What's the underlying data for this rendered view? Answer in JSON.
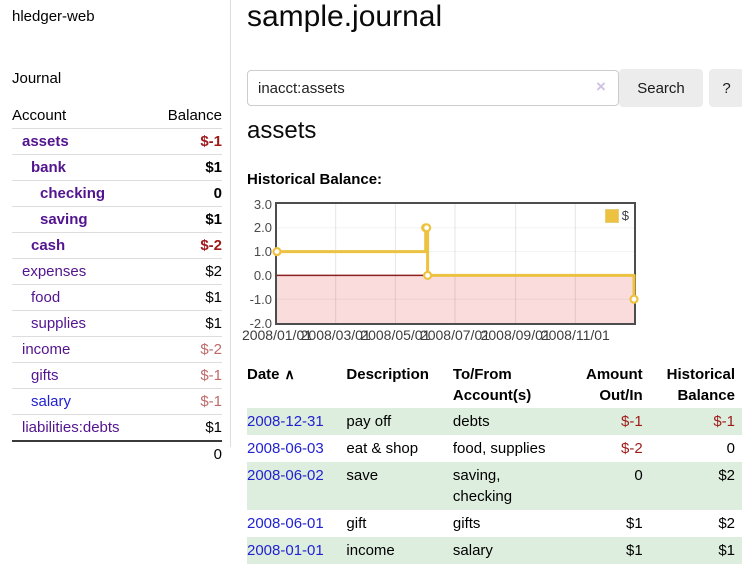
{
  "colors": {
    "link_purple": "#53148f",
    "link_blue": "#2222d2",
    "neg_strong": "#9e1a1a",
    "neg_soft": "#c06a6a",
    "row_stripe_green": "#deeede",
    "chart_line_gold": "#edc240",
    "chart_negative_fill": "#fbdcdc",
    "chart_zero_line": "#8b2020",
    "text_black": "#000000"
  },
  "sidebar": {
    "brand": "hledger-web",
    "journal_link": "Journal",
    "accounts_table": {
      "headers": [
        "Account",
        "Balance"
      ],
      "rows": [
        {
          "name": "assets",
          "balance": "$-1",
          "level": 1,
          "bold": true,
          "name_color": "purple",
          "balance_color": "neg_strong"
        },
        {
          "name": "bank",
          "balance": "$1",
          "level": 2,
          "bold": true,
          "name_color": "purple",
          "balance_color": "black"
        },
        {
          "name": "checking",
          "balance": "0",
          "level": 3,
          "bold": true,
          "name_color": "purple",
          "balance_color": "black"
        },
        {
          "name": "saving",
          "balance": "$1",
          "level": 3,
          "bold": true,
          "name_color": "purple",
          "balance_color": "black"
        },
        {
          "name": "cash",
          "balance": "$-2",
          "level": 2,
          "bold": true,
          "name_color": "purple",
          "balance_color": "neg_strong"
        },
        {
          "name": "expenses",
          "balance": "$2",
          "level": 1,
          "bold": false,
          "name_color": "purple",
          "balance_color": "black"
        },
        {
          "name": "food",
          "balance": "$1",
          "level": 2,
          "bold": false,
          "name_color": "purple",
          "balance_color": "black"
        },
        {
          "name": "supplies",
          "balance": "$1",
          "level": 2,
          "bold": false,
          "name_color": "purple",
          "balance_color": "black"
        },
        {
          "name": "income",
          "balance": "$-2",
          "level": 1,
          "bold": false,
          "name_color": "purple",
          "balance_color": "neg_soft"
        },
        {
          "name": "gifts",
          "balance": "$-1",
          "level": 2,
          "bold": false,
          "name_color": "purple",
          "balance_color": "neg_soft"
        },
        {
          "name": "salary",
          "balance": "$-1",
          "level": 2,
          "bold": false,
          "name_color": "blue",
          "balance_color": "neg_soft"
        },
        {
          "name": "liabilities:debts",
          "balance": "$1",
          "level": 1,
          "bold": false,
          "name_color": "purple",
          "balance_color": "black"
        }
      ],
      "total": "0"
    }
  },
  "header": {
    "title": "sample.journal"
  },
  "search": {
    "query": "inacct:assets",
    "clear_icon": "×",
    "search_label": "Search",
    "help_label": "?"
  },
  "main": {
    "account_heading": "assets",
    "chart_label": "Historical Balance:"
  },
  "chart_data": {
    "type": "line",
    "title": "Historical Balance:",
    "step": true,
    "series": [
      {
        "name": "$",
        "points": [
          [
            "2008-01-01",
            1
          ],
          [
            "2008-06-01",
            2
          ],
          [
            "2008-06-02",
            2
          ],
          [
            "2008-06-03",
            0
          ],
          [
            "2008-12-31",
            -1
          ]
        ]
      }
    ],
    "ylim": [
      -2,
      3
    ],
    "ytick_labels": [
      "3.0",
      "2.0",
      "1.0",
      "0.0",
      "-1.0",
      "-2.0"
    ],
    "xrange": [
      "2008-01-01",
      "2008-12-31"
    ],
    "xtick_labels": [
      "2008/01/01",
      "2008/03/01",
      "2008/05/01",
      "2008/07/01",
      "2008/09/01",
      "2008/11/01"
    ],
    "grid": true,
    "legend_position": "top-right",
    "legend": [
      {
        "label": "$",
        "color": "#edc240"
      }
    ]
  },
  "register": {
    "headers": {
      "date": "Date",
      "sort_asc_icon": "∧",
      "description": "Description",
      "tofrom1": "To/From",
      "tofrom2": "Account(s)",
      "amount1": "Amount",
      "amount2": "Out/In",
      "hist1": "Historical",
      "hist2": "Balance"
    },
    "rows": [
      {
        "date": "2008-12-31",
        "description": "pay off",
        "accounts": "debts",
        "amount": "$-1",
        "amount_neg": true,
        "balance": "$-1",
        "balance_neg": true
      },
      {
        "date": "2008-06-03",
        "description": "eat & shop",
        "accounts": "food, supplies",
        "amount": "$-2",
        "amount_neg": true,
        "balance": "0",
        "balance_neg": false
      },
      {
        "date": "2008-06-02",
        "description": "save",
        "accounts": "saving, checking",
        "amount": "0",
        "amount_neg": false,
        "balance": "$2",
        "balance_neg": false
      },
      {
        "date": "2008-06-01",
        "description": "gift",
        "accounts": "gifts",
        "amount": "$1",
        "amount_neg": false,
        "balance": "$2",
        "balance_neg": false
      },
      {
        "date": "2008-01-01",
        "description": "income",
        "accounts": "salary",
        "amount": "$1",
        "amount_neg": false,
        "balance": "$1",
        "balance_neg": false
      }
    ]
  }
}
